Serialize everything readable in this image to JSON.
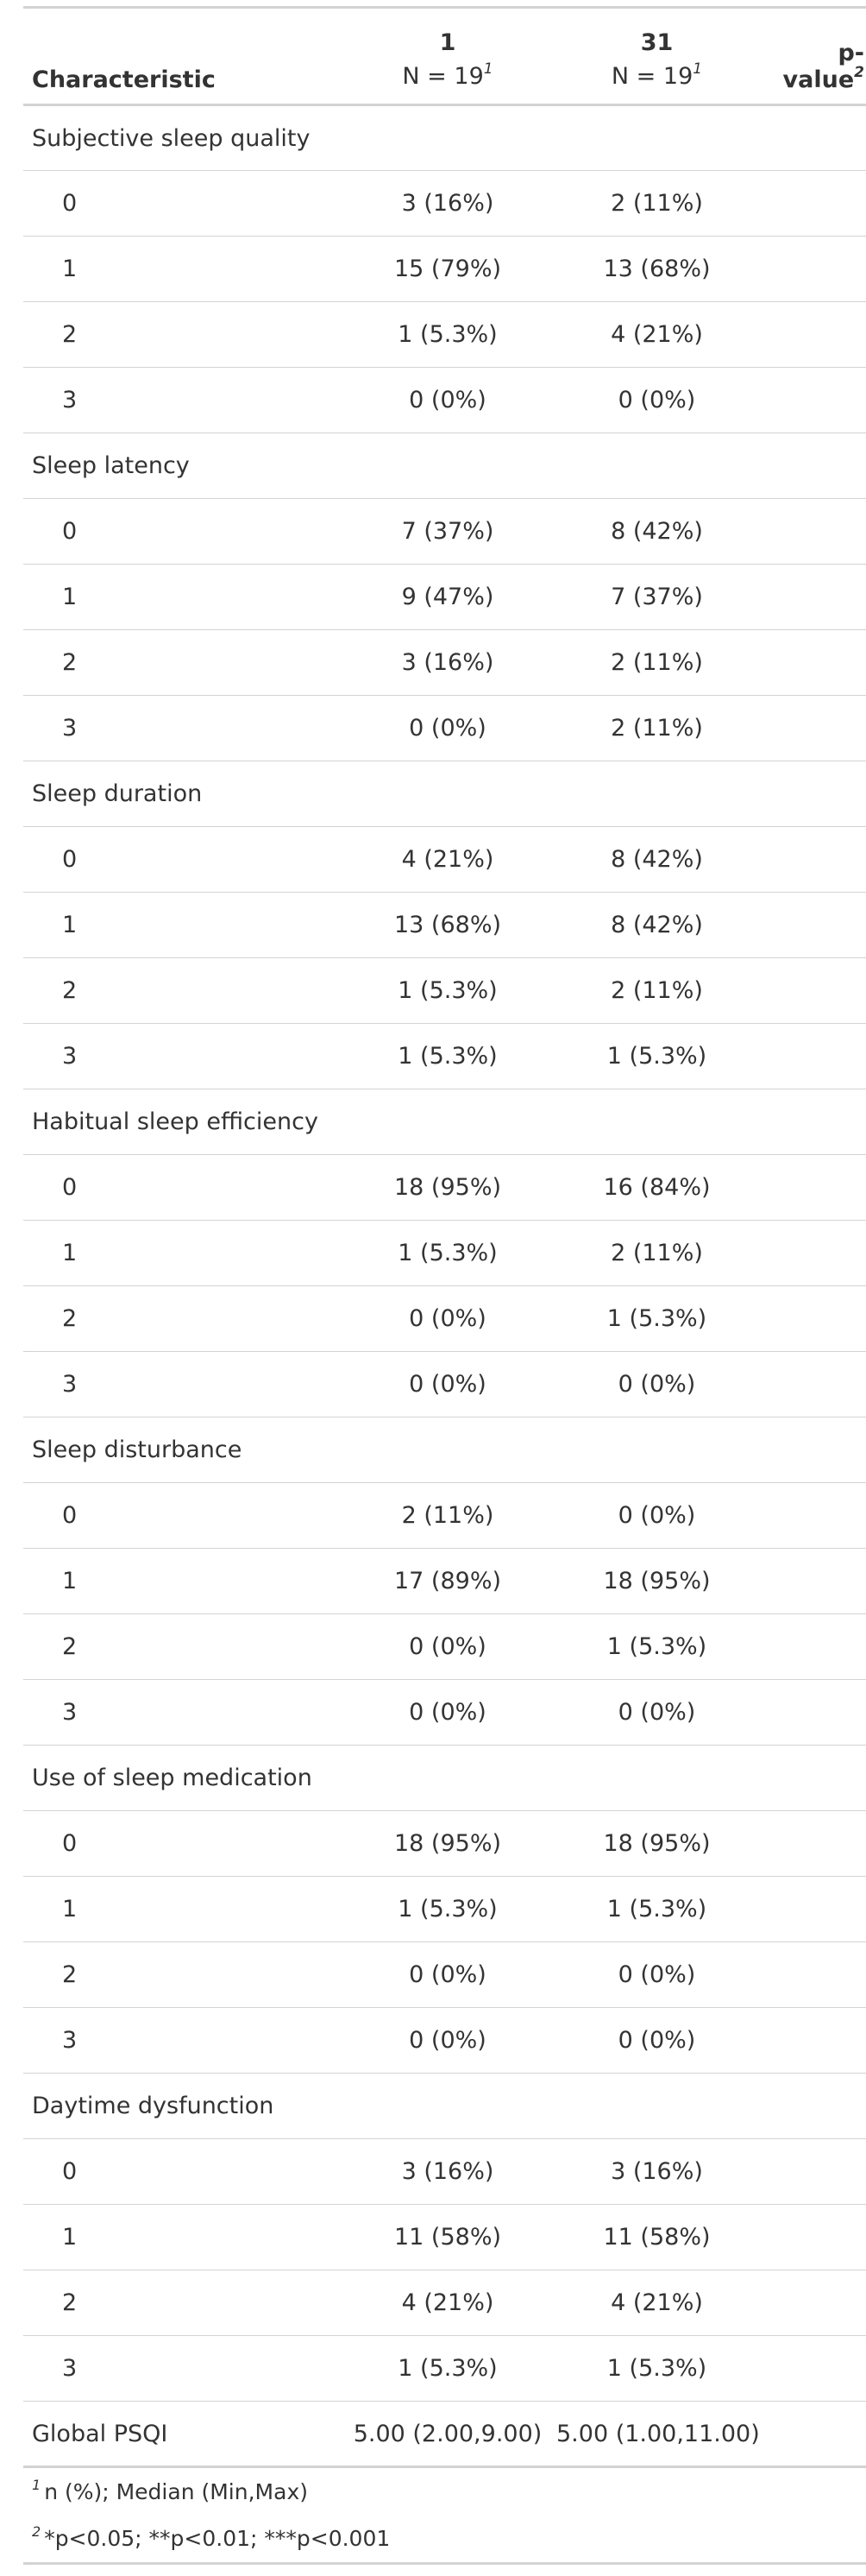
{
  "header": {
    "characteristic": "Characteristic",
    "groups": [
      {
        "level": "1",
        "n": "N = 19",
        "footnote_mark": "1"
      },
      {
        "level": "31",
        "n": "N = 19",
        "footnote_mark": "1"
      }
    ],
    "pvalue": "p-value",
    "pvalue_mark": "2"
  },
  "sections": [
    {
      "label": "Subjective sleep quality",
      "rows": [
        {
          "level": "0",
          "a": "3 (16%)",
          "b": "2 (11%)"
        },
        {
          "level": "1",
          "a": "15 (79%)",
          "b": "13 (68%)"
        },
        {
          "level": "2",
          "a": "1 (5.3%)",
          "b": "4 (21%)"
        },
        {
          "level": "3",
          "a": "0 (0%)",
          "b": "0 (0%)"
        }
      ]
    },
    {
      "label": "Sleep latency",
      "rows": [
        {
          "level": "0",
          "a": "7 (37%)",
          "b": "8 (42%)"
        },
        {
          "level": "1",
          "a": "9 (47%)",
          "b": "7 (37%)"
        },
        {
          "level": "2",
          "a": "3 (16%)",
          "b": "2 (11%)"
        },
        {
          "level": "3",
          "a": "0 (0%)",
          "b": "2 (11%)"
        }
      ]
    },
    {
      "label": "Sleep duration",
      "rows": [
        {
          "level": "0",
          "a": "4 (21%)",
          "b": "8 (42%)"
        },
        {
          "level": "1",
          "a": "13 (68%)",
          "b": "8 (42%)"
        },
        {
          "level": "2",
          "a": "1 (5.3%)",
          "b": "2 (11%)"
        },
        {
          "level": "3",
          "a": "1 (5.3%)",
          "b": "1 (5.3%)"
        }
      ]
    },
    {
      "label": "Habitual sleep efficiency",
      "rows": [
        {
          "level": "0",
          "a": "18 (95%)",
          "b": "16 (84%)"
        },
        {
          "level": "1",
          "a": "1 (5.3%)",
          "b": "2 (11%)"
        },
        {
          "level": "2",
          "a": "0 (0%)",
          "b": "1 (5.3%)"
        },
        {
          "level": "3",
          "a": "0 (0%)",
          "b": "0 (0%)"
        }
      ]
    },
    {
      "label": "Sleep disturbance",
      "rows": [
        {
          "level": "0",
          "a": "2 (11%)",
          "b": "0 (0%)"
        },
        {
          "level": "1",
          "a": "17 (89%)",
          "b": "18 (95%)"
        },
        {
          "level": "2",
          "a": "0 (0%)",
          "b": "1 (5.3%)"
        },
        {
          "level": "3",
          "a": "0 (0%)",
          "b": "0 (0%)"
        }
      ]
    },
    {
      "label": "Use of sleep medication",
      "rows": [
        {
          "level": "0",
          "a": "18 (95%)",
          "b": "18 (95%)"
        },
        {
          "level": "1",
          "a": "1 (5.3%)",
          "b": "1 (5.3%)"
        },
        {
          "level": "2",
          "a": "0 (0%)",
          "b": "0 (0%)"
        },
        {
          "level": "3",
          "a": "0 (0%)",
          "b": "0 (0%)"
        }
      ]
    },
    {
      "label": "Daytime dysfunction",
      "rows": [
        {
          "level": "0",
          "a": "3 (16%)",
          "b": "3 (16%)"
        },
        {
          "level": "1",
          "a": "11 (58%)",
          "b": "11 (58%)"
        },
        {
          "level": "2",
          "a": "4 (21%)",
          "b": "4 (21%)"
        },
        {
          "level": "3",
          "a": "1 (5.3%)",
          "b": "1 (5.3%)"
        }
      ]
    }
  ],
  "summary": {
    "label": "Global PSQI",
    "a": "5.00 (2.00,9.00)",
    "b": "5.00 (1.00,11.00)"
  },
  "footnotes": [
    {
      "mark": "1",
      "text": "n (%); Median (Min,Max)"
    },
    {
      "mark": "2",
      "text": "*p<0.05; **p<0.01; ***p<0.001"
    }
  ]
}
